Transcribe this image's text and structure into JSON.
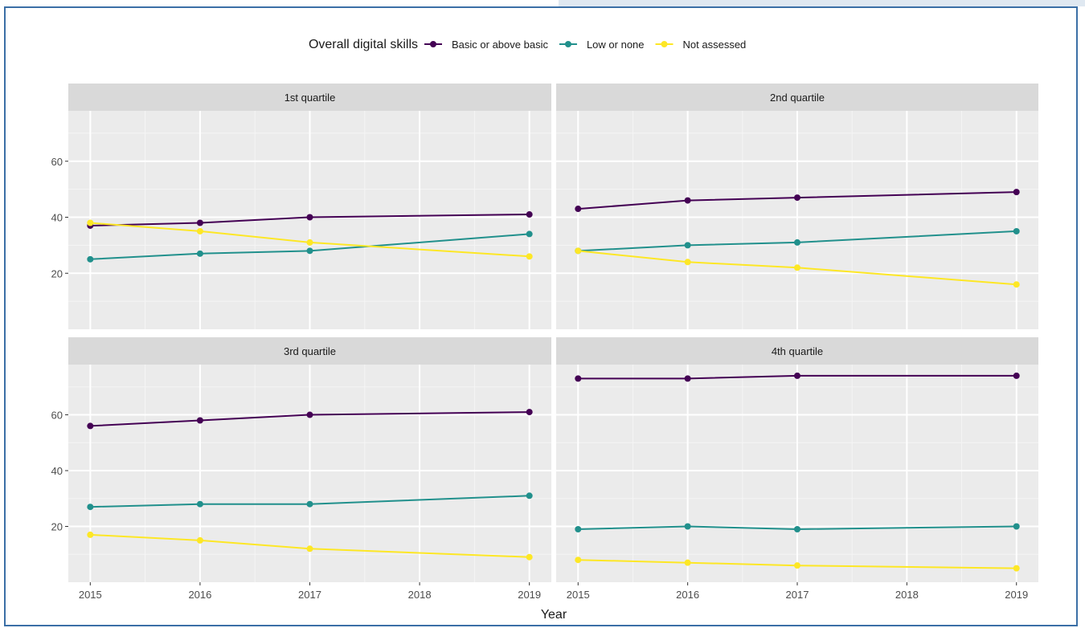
{
  "chart_data": {
    "type": "line",
    "xlabel": "Year",
    "ylabel": "",
    "x": [
      2015,
      2016,
      2017,
      2018,
      2019
    ],
    "x_ticks": [
      "2015",
      "2016",
      "2017",
      "2018",
      "2019"
    ],
    "y_ticks": [
      "20",
      "40",
      "60"
    ],
    "ylim": [
      0,
      78
    ],
    "xlim": [
      2014.8,
      2019.2
    ],
    "grid": true,
    "legend": {
      "title": "Overall digital skills",
      "placement": "top"
    },
    "series_styles": [
      {
        "name": "Basic or above basic",
        "color": "#440154"
      },
      {
        "name": "Low or none",
        "color": "#21908c"
      },
      {
        "name": "Not assessed",
        "color": "#fde725"
      }
    ],
    "panels": [
      {
        "title": "1st quartile",
        "series": [
          {
            "name": "Basic or above basic",
            "points": [
              [
                2015,
                37
              ],
              [
                2016,
                38
              ],
              [
                2017,
                40
              ],
              [
                2019,
                41
              ]
            ]
          },
          {
            "name": "Low or none",
            "points": [
              [
                2015,
                25
              ],
              [
                2016,
                27
              ],
              [
                2017,
                28
              ],
              [
                2019,
                34
              ]
            ]
          },
          {
            "name": "Not assessed",
            "points": [
              [
                2015,
                38
              ],
              [
                2016,
                35
              ],
              [
                2017,
                31
              ],
              [
                2019,
                26
              ]
            ]
          }
        ]
      },
      {
        "title": "2nd quartile",
        "series": [
          {
            "name": "Basic or above basic",
            "points": [
              [
                2015,
                43
              ],
              [
                2016,
                46
              ],
              [
                2017,
                47
              ],
              [
                2019,
                49
              ]
            ]
          },
          {
            "name": "Low or none",
            "points": [
              [
                2015,
                28
              ],
              [
                2016,
                30
              ],
              [
                2017,
                31
              ],
              [
                2019,
                35
              ]
            ]
          },
          {
            "name": "Not assessed",
            "points": [
              [
                2015,
                28
              ],
              [
                2016,
                24
              ],
              [
                2017,
                22
              ],
              [
                2019,
                16
              ]
            ]
          }
        ]
      },
      {
        "title": "3rd quartile",
        "series": [
          {
            "name": "Basic or above basic",
            "points": [
              [
                2015,
                56
              ],
              [
                2016,
                58
              ],
              [
                2017,
                60
              ],
              [
                2019,
                61
              ]
            ]
          },
          {
            "name": "Low or none",
            "points": [
              [
                2015,
                27
              ],
              [
                2016,
                28
              ],
              [
                2017,
                28
              ],
              [
                2019,
                31
              ]
            ]
          },
          {
            "name": "Not assessed",
            "points": [
              [
                2015,
                17
              ],
              [
                2016,
                15
              ],
              [
                2017,
                12
              ],
              [
                2019,
                9
              ]
            ]
          }
        ]
      },
      {
        "title": "4th quartile",
        "series": [
          {
            "name": "Basic or above basic",
            "points": [
              [
                2015,
                73
              ],
              [
                2016,
                73
              ],
              [
                2017,
                74
              ],
              [
                2019,
                74
              ]
            ]
          },
          {
            "name": "Low or none",
            "points": [
              [
                2015,
                19
              ],
              [
                2016,
                20
              ],
              [
                2017,
                19
              ],
              [
                2019,
                20
              ]
            ]
          },
          {
            "name": "Not assessed",
            "points": [
              [
                2015,
                8
              ],
              [
                2016,
                7
              ],
              [
                2017,
                6
              ],
              [
                2019,
                5
              ]
            ]
          }
        ]
      }
    ]
  }
}
